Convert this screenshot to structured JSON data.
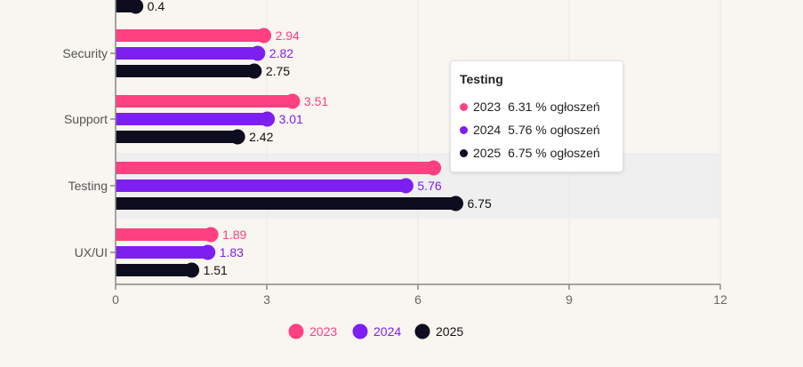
{
  "chart_data": {
    "type": "bar",
    "orientation": "horizontal",
    "categories": [
      "",
      "Security",
      "Support",
      "Testing",
      "UX/UI"
    ],
    "series": [
      {
        "name": "2023",
        "color": "#ff4081",
        "values": [
          null,
          2.94,
          3.51,
          6.31,
          1.89
        ]
      },
      {
        "name": "2024",
        "color": "#7c1ff0",
        "values": [
          null,
          2.82,
          3.01,
          5.76,
          1.83
        ]
      },
      {
        "name": "2025",
        "color": "#0d0d1f",
        "values": [
          0.4,
          2.75,
          2.42,
          6.75,
          1.51
        ]
      }
    ],
    "value_labels": [
      {
        "series": 0,
        "category": 1,
        "text": "2.94"
      },
      {
        "series": 1,
        "category": 1,
        "text": "2.82"
      },
      {
        "series": 2,
        "category": 1,
        "text": "2.75"
      },
      {
        "series": 0,
        "category": 2,
        "text": "3.51"
      },
      {
        "series": 1,
        "category": 2,
        "text": "3.01"
      },
      {
        "series": 2,
        "category": 2,
        "text": "2.42"
      },
      {
        "series": 1,
        "category": 3,
        "text": "5.76"
      },
      {
        "series": 2,
        "category": 3,
        "text": "6.75"
      },
      {
        "series": 0,
        "category": 4,
        "text": "1.89"
      },
      {
        "series": 1,
        "category": 4,
        "text": "1.83"
      },
      {
        "series": 2,
        "category": 4,
        "text": "1.51"
      },
      {
        "series": 2,
        "category": 0,
        "text": "0.4"
      }
    ],
    "xlim": [
      0,
      12
    ],
    "xticks": [
      0,
      3,
      6,
      9,
      12
    ],
    "xtick_labels": [
      "0",
      "3",
      "6",
      "9",
      "12"
    ],
    "grid": true,
    "legend": "bottom",
    "highlighted_category": "Testing"
  },
  "tooltip": {
    "title": "Testing",
    "rows": [
      {
        "year": "2023",
        "value": "6.31 % ogłoszeń",
        "color": "#ff4081"
      },
      {
        "year": "2024",
        "value": "5.76 % ogłoszeń",
        "color": "#7c1ff0"
      },
      {
        "year": "2025",
        "value": "6.75 % ogłoszeń",
        "color": "#0d0d1f"
      }
    ]
  }
}
